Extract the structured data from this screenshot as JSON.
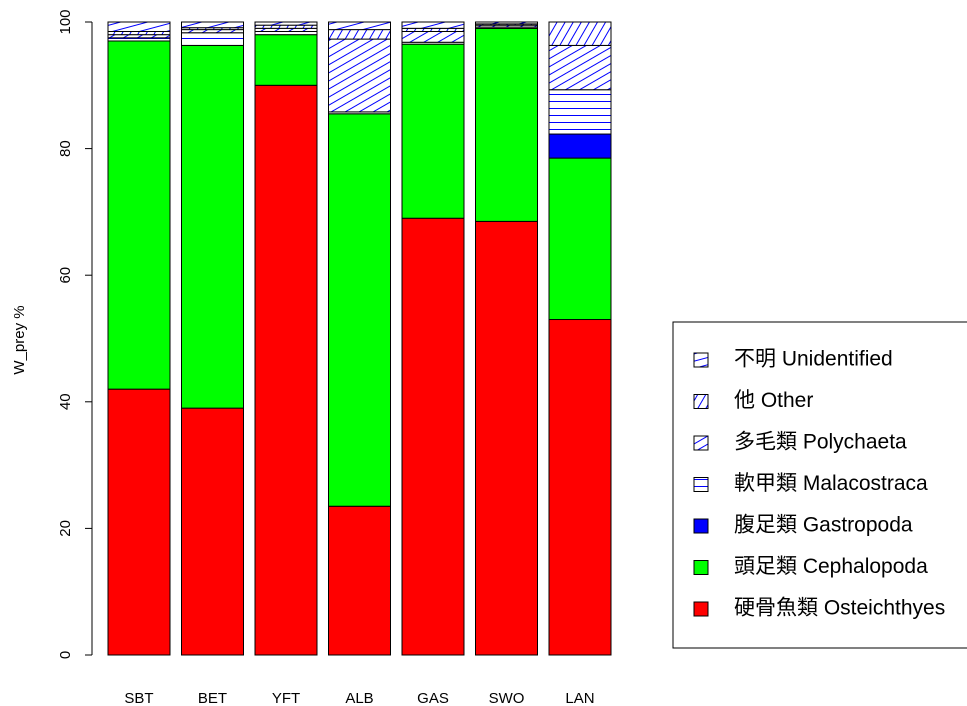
{
  "chart_data": {
    "type": "stacked_bar",
    "y_label": "W_prey %",
    "categories": [
      "SBT",
      "BET",
      "YFT",
      "ALB",
      "GAS",
      "SWO",
      "LAN"
    ],
    "series": [
      {
        "name": "硬骨魚類 Osteichthyes",
        "color": "#ff0000",
        "values": [
          42,
          39,
          90,
          23.5,
          69,
          68.5,
          53
        ]
      },
      {
        "name": "頭足類 Cephalopoda",
        "color": "#00ff00",
        "values": [
          55,
          57.3,
          8,
          62,
          27.5,
          30.5,
          25.5
        ]
      },
      {
        "name": "腹足類 Gastropoda",
        "color": "#0000ff",
        "values": [
          0,
          0,
          0,
          0,
          0,
          0,
          3.8
        ]
      },
      {
        "name": "軟甲類 Malacostraca",
        "color": "#0000ff",
        "hatch_angle": 0,
        "values": [
          0.5,
          2,
          0.5,
          0.3,
          0.3,
          0.2,
          7
        ]
      },
      {
        "name": "多毛類 Polychaeta",
        "color": "#0000ff",
        "hatch_angle": 30,
        "values": [
          0.5,
          0.5,
          0.5,
          11.5,
          1.7,
          0.3,
          7
        ]
      },
      {
        "name": "他 Other",
        "color": "#0000ff",
        "hatch_angle": 60,
        "values": [
          0.5,
          0.3,
          0.5,
          1.5,
          0.5,
          0.2,
          3.7
        ]
      },
      {
        "name": "不明 Unidentified",
        "color": "#0000ff",
        "hatch_angle": 15,
        "values": [
          1.5,
          0.9,
          0.5,
          1.2,
          1,
          0.3,
          0
        ]
      }
    ],
    "ylim": [
      0,
      100
    ],
    "yticks": [
      0,
      20,
      40,
      60,
      80,
      100
    ],
    "legend": "right"
  }
}
